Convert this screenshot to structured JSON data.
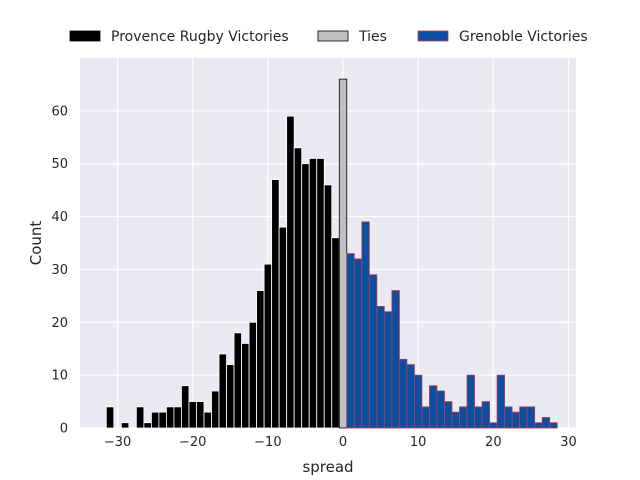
{
  "chart_data": {
    "type": "bar",
    "title": "",
    "xlabel": "spread",
    "ylabel": "Count",
    "xlim": [
      -35,
      31
    ],
    "ylim": [
      0,
      70
    ],
    "xticks": [
      -30,
      -20,
      -10,
      0,
      10,
      20,
      30
    ],
    "yticks": [
      0,
      10,
      20,
      30,
      40,
      50,
      60
    ],
    "xtick_labels": [
      "−30",
      "−20",
      "−10",
      "0",
      "10",
      "20",
      "30"
    ],
    "ytick_labels": [
      "0",
      "10",
      "20",
      "30",
      "40",
      "50",
      "60"
    ],
    "grid": true,
    "legend_position": "top-center-outside",
    "series": [
      {
        "name": "Provence Rugby Victories",
        "color": "#000000",
        "edgecolor": "#ffffff",
        "x": [
          -31,
          -30,
          -29,
          -28,
          -27,
          -26,
          -25,
          -24,
          -23,
          -22,
          -21,
          -20,
          -19,
          -18,
          -17,
          -16,
          -15,
          -14,
          -13,
          -12,
          -11,
          -10,
          -9,
          -8,
          -7,
          -6,
          -5,
          -4,
          -3,
          -2,
          -1
        ],
        "values": [
          4,
          0,
          1,
          0,
          4,
          1,
          3,
          3,
          4,
          4,
          8,
          5,
          5,
          3,
          7,
          14,
          12,
          18,
          16,
          20,
          26,
          31,
          47,
          38,
          59,
          53,
          50,
          51,
          51,
          46,
          36
        ]
      },
      {
        "name": "Ties",
        "color": "#c0c0c0",
        "edgecolor": "#000000",
        "x": [
          0
        ],
        "values": [
          66
        ]
      },
      {
        "name": "Grenoble Victories",
        "color": "#0b4fa3",
        "edgecolor": "#c0394b",
        "x": [
          1,
          2,
          3,
          4,
          5,
          6,
          7,
          8,
          9,
          10,
          11,
          12,
          13,
          14,
          15,
          16,
          17,
          18,
          19,
          20,
          21,
          22,
          23,
          24,
          25,
          26,
          27,
          28
        ],
        "values": [
          33,
          32,
          39,
          29,
          23,
          22,
          26,
          13,
          12,
          10,
          4,
          8,
          7,
          5,
          3,
          4,
          10,
          4,
          5,
          1,
          10,
          4,
          3,
          4,
          4,
          1,
          2,
          1
        ]
      }
    ]
  }
}
